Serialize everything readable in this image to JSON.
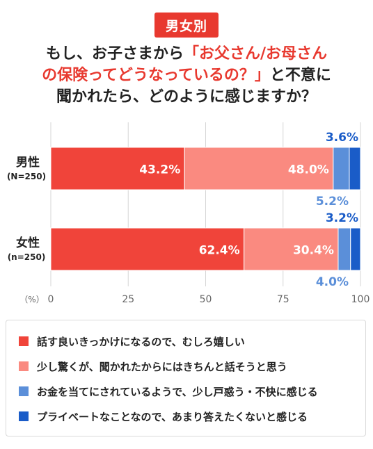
{
  "badge": "男女別",
  "title": {
    "line1_a": "もし、お子さまから",
    "line1_b": "「お父さん/お母さん",
    "line2_a": "の保険ってどうなっているの？」",
    "line2_b": "と不意に",
    "line3": "聞かれたら、どのように感じますか？"
  },
  "chart_data": {
    "type": "bar",
    "orientation": "horizontal",
    "stacked": true,
    "unit_label": "（%）",
    "xlim": [
      0,
      100
    ],
    "xticks": [
      "0",
      "25",
      "50",
      "75",
      "100"
    ],
    "categories": [
      {
        "label": "男性",
        "sublabel": "(N=250)"
      },
      {
        "label": "女性",
        "sublabel": "(n=250)"
      }
    ],
    "series": [
      {
        "name": "話す良いきっかけになるので、むしろ嬉しい",
        "color": "#f0443a",
        "values": [
          43.2,
          62.4
        ]
      },
      {
        "name": "少し驚くが、聞かれたからにはきちんと話そうと思う",
        "color": "#fa8a80",
        "values": [
          48.0,
          30.4
        ]
      },
      {
        "name": "お金を当てにされているようで、少し戸惑う・不快に感じる",
        "color": "#5b8fd9",
        "values": [
          5.2,
          4.0
        ]
      },
      {
        "name": "プライベートなことなので、あまり答えたくないと感じる",
        "color": "#1a5cc8",
        "values": [
          3.6,
          3.2
        ]
      }
    ],
    "data_labels": [
      [
        "43.2%",
        "48.0%",
        "5.2%",
        "3.6%"
      ],
      [
        "62.4%",
        "30.4%",
        "4.0%",
        "3.2%"
      ]
    ],
    "grid": true,
    "legend_position": "bottom"
  }
}
